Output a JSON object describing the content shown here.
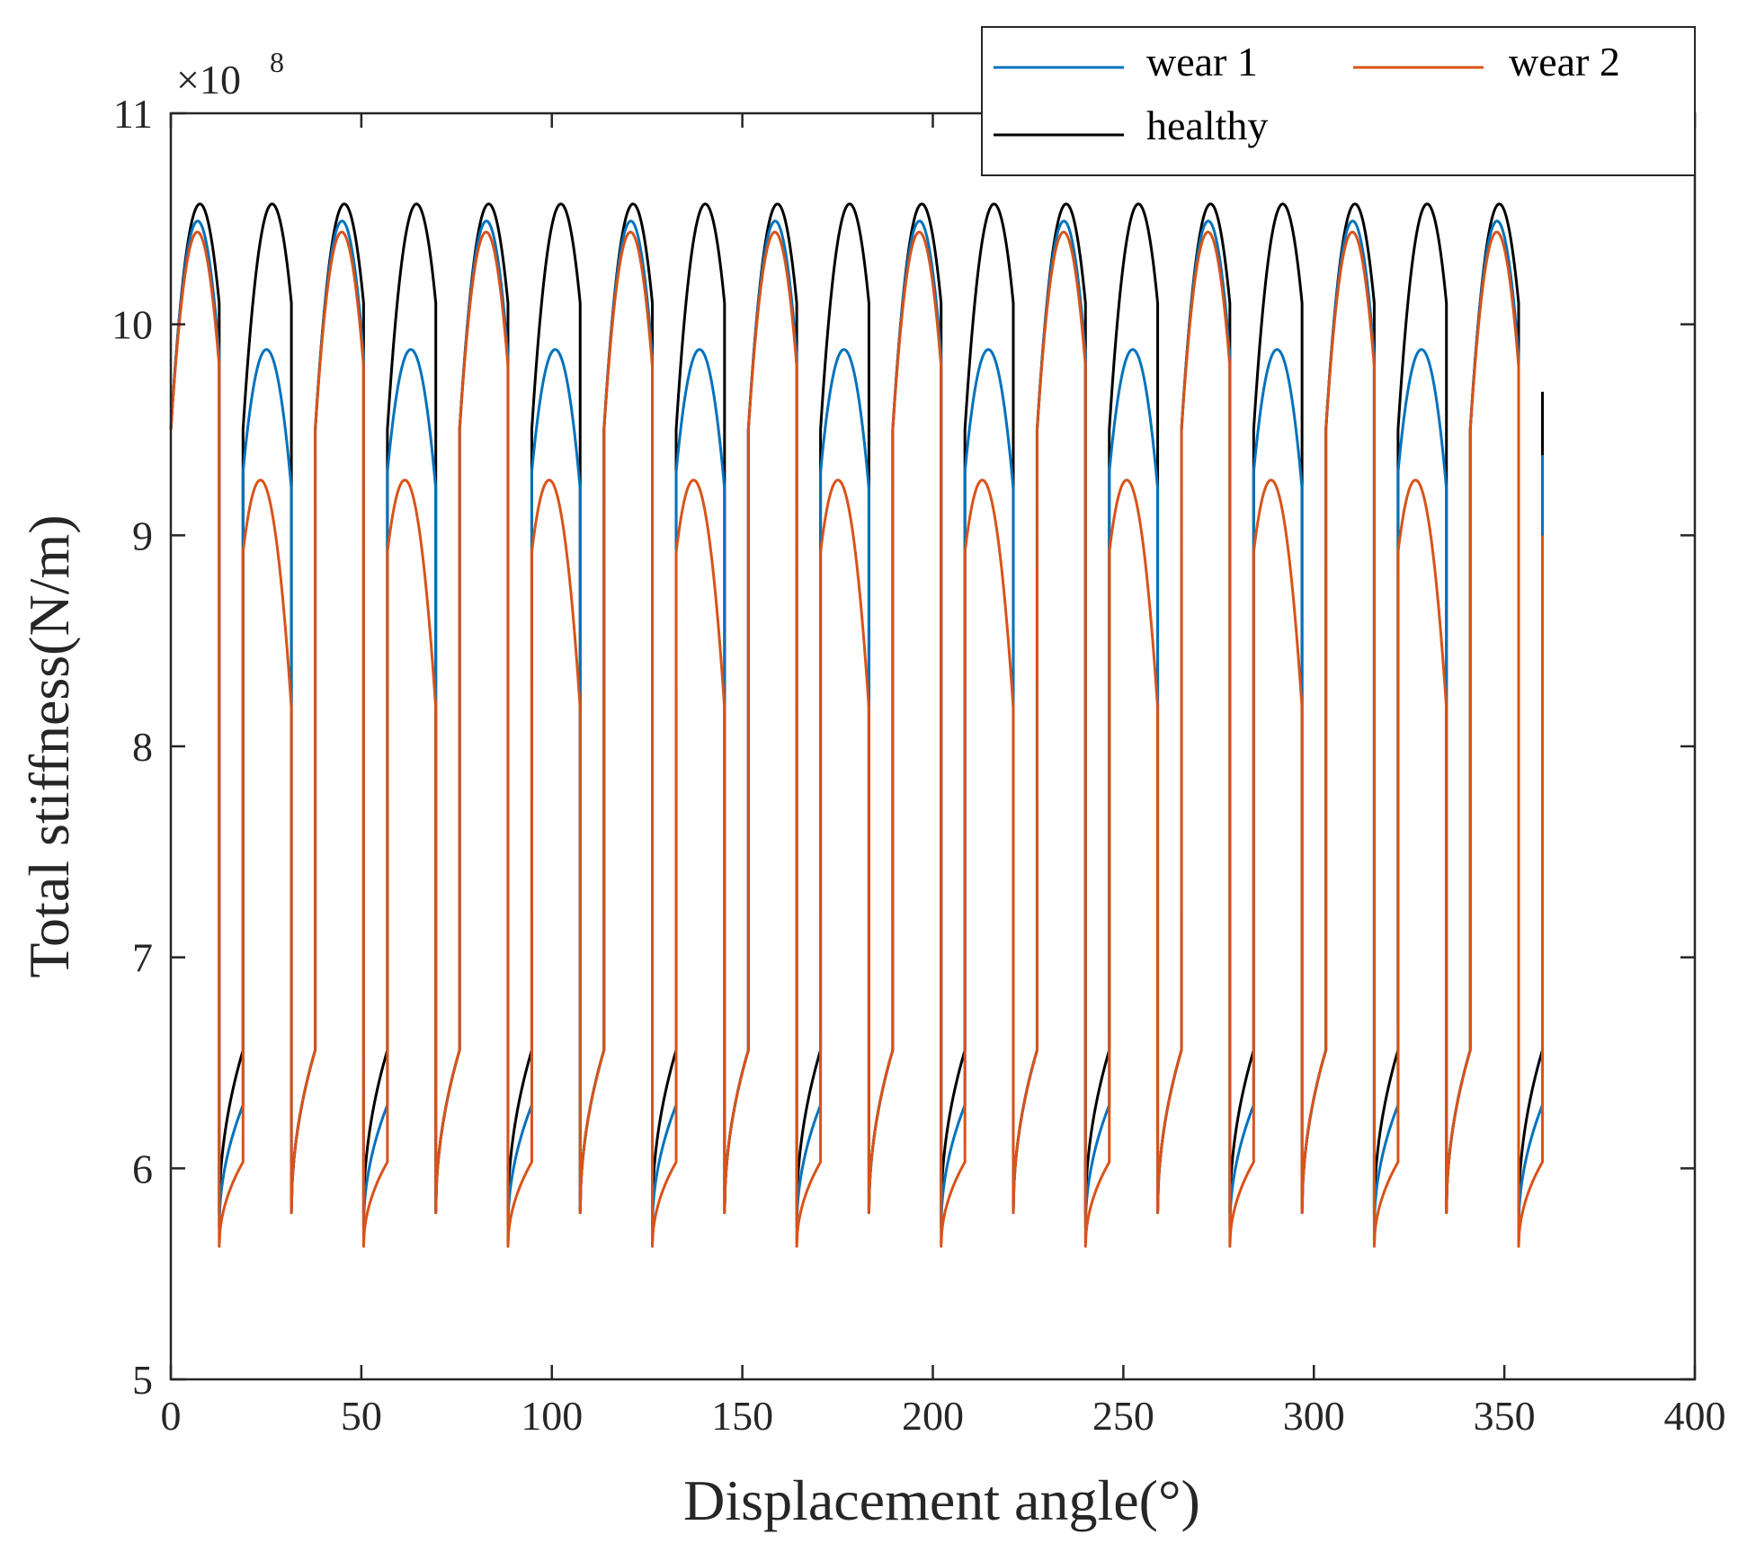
{
  "chart_data": {
    "type": "line",
    "title": "",
    "xlabel": "Displacement angle(°)",
    "ylabel": "Total stiffness(N/m)",
    "xlim": [
      0,
      400
    ],
    "ylim": [
      5,
      11
    ],
    "xticks": [
      0,
      50,
      100,
      150,
      200,
      250,
      300,
      350,
      400
    ],
    "yticks": [
      5,
      6,
      7,
      8,
      9,
      10,
      11
    ],
    "xtick_labels": [
      "0",
      "50",
      "100",
      "150",
      "200",
      "250",
      "300",
      "350",
      "400"
    ],
    "ytick_labels": [
      "5",
      "6",
      "7",
      "8",
      "9",
      "10",
      "11"
    ],
    "y_multiplier_base": "×10",
    "y_multiplier_exp": "8",
    "y_scale": 100000000,
    "grid": false,
    "legend_position": "top-right",
    "tooth_pitch_deg": 18.947,
    "periods": 19,
    "x_end": 360,
    "double_mesh_span_deg": 12.7,
    "single_mesh_span_deg": 6.25,
    "series": [
      {
        "name": "wear 1",
        "color": "#0072BD",
        "healthy_tooth_peak": 10.48,
        "healthy_tooth_end": 9.85,
        "worn_tooth_start": 9.3,
        "worn_tooth_peak": 9.88,
        "worn_tooth_end": 9.22,
        "single_mesh_min": 5.72,
        "single_mesh_max": 6.3,
        "healthy_single_min": 5.79,
        "healthy_single_max": 6.56,
        "periodic_start": 9.5,
        "end_value": 9.38
      },
      {
        "name": "wear 2",
        "color": "#D95319",
        "healthy_tooth_peak": 10.43,
        "healthy_tooth_end": 9.8,
        "worn_tooth_start": 8.92,
        "worn_tooth_peak": 9.21,
        "worn_tooth_end": 8.18,
        "single_mesh_min": 5.63,
        "single_mesh_max": 6.03,
        "healthy_single_min": 5.79,
        "healthy_single_max": 6.56,
        "periodic_start": 9.5,
        "end_value": 9.0
      },
      {
        "name": "healthy",
        "color": "#000000",
        "healthy_tooth_peak": 10.54,
        "healthy_tooth_end": 10.1,
        "worn_tooth_start": 9.5,
        "worn_tooth_peak": 10.54,
        "worn_tooth_end": 10.1,
        "single_mesh_min": 5.79,
        "single_mesh_max": 6.56,
        "healthy_single_min": 5.79,
        "healthy_single_max": 6.56,
        "periodic_start": 9.5,
        "end_value": 9.68
      }
    ]
  }
}
